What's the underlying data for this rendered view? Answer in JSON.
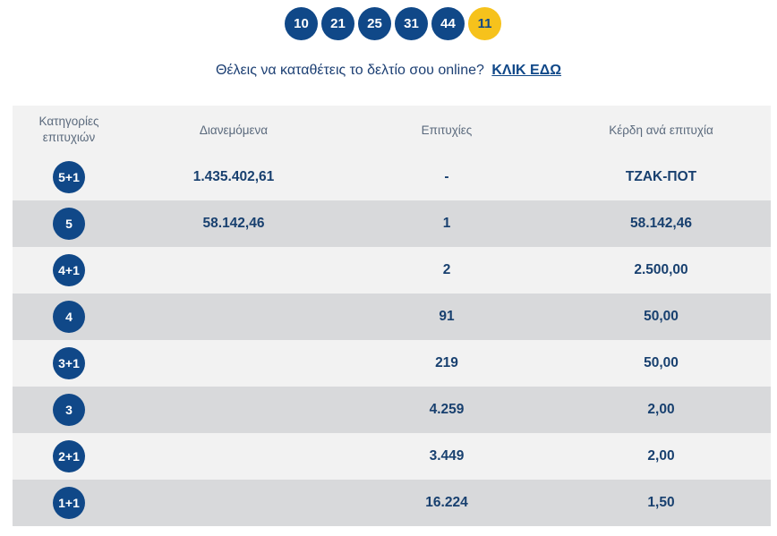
{
  "drawn_numbers": [
    "10",
    "21",
    "25",
    "31",
    "44"
  ],
  "joker_number": "11",
  "promo": {
    "text": "Θέλεις να καταθέτεις το δελτίο σου online?",
    "link_label": "ΚΛΙΚ ΕΔΩ"
  },
  "table": {
    "headers": {
      "category": "Κατηγορίες επιτυχιών",
      "distributed": "Διανεμόμενα",
      "winners": "Επιτυχίες",
      "prize": "Κέρδη ανά επιτυχία"
    },
    "rows": [
      {
        "category": "5+1",
        "distributed": "1.435.402,61",
        "winners": "-",
        "prize": "ΤΖΑΚ-ΠΟΤ"
      },
      {
        "category": "5",
        "distributed": "58.142,46",
        "winners": "1",
        "prize": "58.142,46"
      },
      {
        "category": "4+1",
        "distributed": "",
        "winners": "2",
        "prize": "2.500,00"
      },
      {
        "category": "4",
        "distributed": "",
        "winners": "91",
        "prize": "50,00"
      },
      {
        "category": "3+1",
        "distributed": "",
        "winners": "219",
        "prize": "50,00"
      },
      {
        "category": "3",
        "distributed": "",
        "winners": "4.259",
        "prize": "2,00"
      },
      {
        "category": "2+1",
        "distributed": "",
        "winners": "3.449",
        "prize": "2,00"
      },
      {
        "category": "1+1",
        "distributed": "",
        "winners": "16.224",
        "prize": "1,50"
      }
    ]
  },
  "colors": {
    "ball_blue": "#104888",
    "joker_yellow": "#f6c21c",
    "row_light": "#f2f2f2",
    "row_dark": "#d8d9db"
  }
}
